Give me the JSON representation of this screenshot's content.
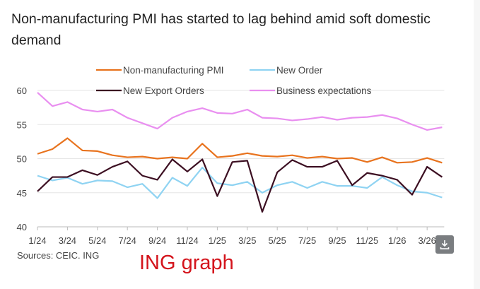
{
  "title": "Non-manufacturing PMI has started to lag behind amid soft domestic demand",
  "source": "Sources: CEIC. ING",
  "watermark": "ING graph",
  "download_icon": "download-icon",
  "chart_data": {
    "type": "line",
    "title": "Non-manufacturing PMI has started to lag behind amid soft domestic demand",
    "x": [
      "1/24",
      "2/24",
      "3/24",
      "4/24",
      "5/24",
      "6/24",
      "7/24",
      "8/24",
      "9/24",
      "10/24",
      "11/24",
      "12/24",
      "1/25",
      "2/25",
      "3/25",
      "4/25",
      "5/25",
      "6/25",
      "7/25",
      "8/25",
      "9/25",
      "10/25",
      "11/25",
      "12/25",
      "1/26",
      "2/26",
      "3/26",
      "4/26"
    ],
    "xtick_labels": [
      "1/24",
      "3/24",
      "5/24",
      "7/24",
      "9/24",
      "11/24",
      "1/25",
      "3/25",
      "5/25",
      "7/25",
      "9/25",
      "11/25",
      "1/26",
      "3/26"
    ],
    "ylim": [
      40,
      60
    ],
    "yticks": [
      40,
      45,
      50,
      55,
      60
    ],
    "grid": "horizontal",
    "legend": "top",
    "series": [
      {
        "name": "Non-manufacturing PMI",
        "color": "#e8731e",
        "values": [
          50.7,
          51.4,
          53.0,
          51.2,
          51.1,
          50.5,
          50.2,
          50.3,
          50.0,
          50.2,
          50.0,
          52.2,
          50.2,
          50.4,
          50.8,
          50.4,
          50.3,
          50.5,
          50.1,
          50.3,
          50.0,
          50.1,
          49.5,
          50.2,
          49.4,
          49.5,
          50.1,
          49.4
        ]
      },
      {
        "name": "New Order",
        "color": "#8fd3f2",
        "values": [
          47.5,
          46.8,
          47.2,
          46.3,
          46.8,
          46.7,
          45.8,
          46.3,
          44.2,
          47.2,
          46.0,
          48.7,
          46.4,
          46.1,
          46.6,
          45.0,
          46.1,
          46.6,
          45.7,
          46.6,
          46.0,
          46.0,
          45.7,
          47.3,
          46.1,
          45.2,
          45.0,
          44.3
        ]
      },
      {
        "name": "New Export Orders",
        "color": "#3c0f22",
        "values": [
          45.2,
          47.3,
          47.3,
          48.3,
          47.6,
          48.8,
          49.6,
          47.5,
          46.9,
          49.9,
          48.1,
          49.9,
          44.5,
          49.5,
          49.7,
          42.2,
          48.0,
          49.8,
          48.8,
          48.8,
          49.7,
          46.1,
          47.9,
          47.5,
          46.9,
          44.7,
          48.8,
          47.3
        ]
      },
      {
        "name": "Business expectations",
        "color": "#e98ff0",
        "values": [
          59.7,
          57.7,
          58.3,
          57.2,
          56.9,
          57.2,
          56.0,
          55.2,
          54.4,
          56.0,
          56.9,
          57.4,
          56.7,
          56.6,
          57.2,
          56.0,
          55.9,
          55.6,
          55.8,
          56.1,
          55.7,
          56.0,
          56.1,
          56.4,
          55.9,
          55.0,
          54.2,
          54.6
        ]
      }
    ]
  }
}
